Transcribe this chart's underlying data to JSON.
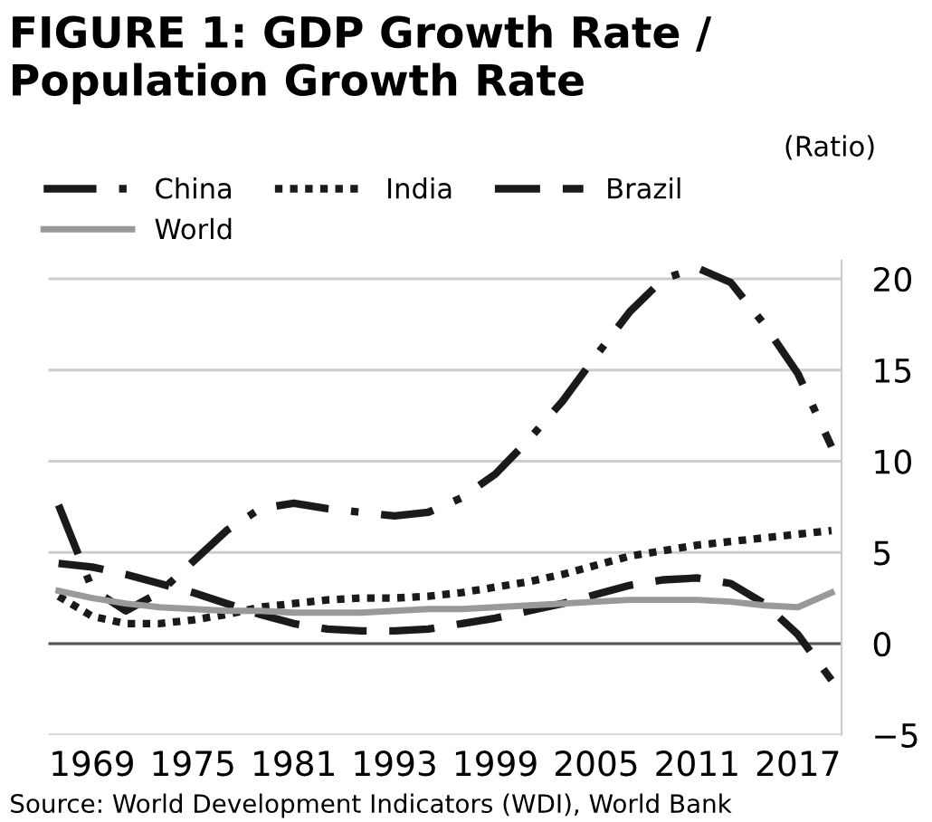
{
  "chart_data": {
    "type": "line",
    "title": "FIGURE 1: GDP Growth Rate / Population Growth Rate",
    "ylabel": "(Ratio)",
    "categories": [
      null,
      "1969",
      null,
      null,
      "1975",
      null,
      null,
      "1981",
      null,
      null,
      "1993",
      null,
      null,
      "1999",
      null,
      null,
      "2005",
      null,
      null,
      "2011",
      null,
      null,
      "2017",
      null
    ],
    "series": [
      {
        "name": "China",
        "color": "#1a1a1a",
        "line_style": "dashdot",
        "values": [
          7.6,
          3.0,
          1.8,
          2.8,
          4.5,
          6.2,
          7.4,
          7.7,
          7.4,
          7.2,
          7.0,
          7.2,
          8.0,
          9.3,
          11.2,
          13.3,
          15.8,
          18.2,
          20.0,
          20.6,
          19.8,
          17.5,
          14.8,
          10.8
        ]
      },
      {
        "name": "India",
        "color": "#1a1a1a",
        "line_style": "dotted",
        "values": [
          2.6,
          1.5,
          1.1,
          1.1,
          1.3,
          1.6,
          2.0,
          2.2,
          2.4,
          2.5,
          2.5,
          2.6,
          2.8,
          3.1,
          3.4,
          3.8,
          4.3,
          4.8,
          5.1,
          5.4,
          5.6,
          5.8,
          6.0,
          6.2
        ]
      },
      {
        "name": "Brazil",
        "color": "#1a1a1a",
        "line_style": "dashed",
        "values": [
          4.4,
          4.2,
          3.8,
          3.3,
          2.8,
          2.2,
          1.6,
          1.1,
          0.8,
          0.7,
          0.7,
          0.8,
          1.1,
          1.4,
          1.8,
          2.2,
          2.7,
          3.2,
          3.5,
          3.6,
          3.3,
          2.2,
          0.5,
          -2.0
        ]
      },
      {
        "name": "World",
        "color": "#999999",
        "line_style": "solid",
        "values": [
          2.9,
          2.5,
          2.2,
          2.0,
          1.9,
          1.8,
          1.8,
          1.7,
          1.7,
          1.7,
          1.8,
          1.9,
          1.9,
          2.0,
          2.1,
          2.2,
          2.3,
          2.4,
          2.4,
          2.4,
          2.3,
          2.1,
          2.0,
          2.8
        ]
      }
    ],
    "ylim": [
      -5,
      21
    ],
    "yticks": [
      -5,
      0,
      5,
      10,
      15,
      20
    ],
    "grid": "y",
    "legend": "top left",
    "ref_lines": [
      {
        "axis": "y",
        "value": 0,
        "label": null,
        "color": "#555555"
      }
    ],
    "annotations": [
      "Source: World Development Indicators (WDI), World Bank"
    ]
  }
}
